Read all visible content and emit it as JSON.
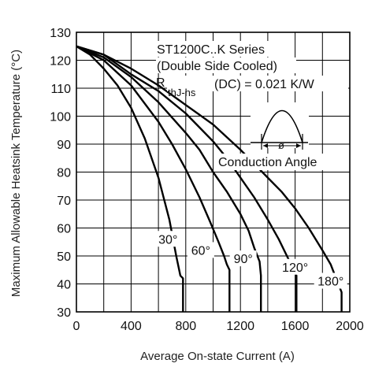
{
  "chart_data": {
    "type": "line",
    "title": "ST1200C..K Series",
    "subtitle": "(Double Side Cooled)",
    "rth_symbol": "R",
    "rth_subscript": "thJ-hs",
    "rth_value": "(DC) = 0.021 K/W",
    "inset_symbol": "ø",
    "inset_label": "Conduction Angle",
    "xlabel": "Average On-state Current (A)",
    "ylabel": "Maximum Allowable Heatsink Temperature (°C)",
    "xlim": [
      0,
      2000
    ],
    "ylim": [
      30,
      130
    ],
    "xticks": [
      "0",
      "400",
      "800",
      "1200",
      "1600",
      "2000"
    ],
    "yticks": [
      "30",
      "40",
      "50",
      "60",
      "70",
      "80",
      "90",
      "100",
      "110",
      "120",
      "130"
    ],
    "x_grid_step": 200,
    "y_grid_step": 10,
    "grid": true,
    "series": [
      {
        "name": "30°",
        "x": [
          0,
          100,
          200,
          300,
          400,
          500,
          600,
          680,
          730,
          760,
          780,
          780
        ],
        "y": [
          125,
          122,
          117,
          111,
          103,
          92,
          78,
          63,
          50,
          43,
          42,
          30
        ]
      },
      {
        "name": "60°",
        "x": [
          0,
          200,
          400,
          600,
          700,
          800,
          900,
          980,
          1040,
          1080,
          1100,
          1120,
          1120
        ],
        "y": [
          125,
          120,
          111,
          98,
          90,
          81,
          71,
          62,
          55,
          50,
          47,
          45,
          30
        ]
      },
      {
        "name": "90°",
        "x": [
          0,
          200,
          400,
          600,
          800,
          900,
          1000,
          1100,
          1200,
          1260,
          1300,
          1340,
          1350,
          1350
        ],
        "y": [
          125,
          121,
          114,
          105,
          94,
          88,
          80,
          73,
          65,
          59,
          53,
          48,
          43,
          30
        ]
      },
      {
        "name": "120°",
        "x": [
          0,
          200,
          400,
          600,
          800,
          1000,
          1100,
          1200,
          1300,
          1400,
          1480,
          1540,
          1580,
          1610,
          1610
        ],
        "y": [
          125,
          122,
          115,
          109,
          101,
          91,
          85,
          78,
          71,
          63,
          56,
          50,
          46,
          43,
          30
        ]
      },
      {
        "name": "180°",
        "x": [
          0,
          200,
          400,
          600,
          800,
          1000,
          1200,
          1400,
          1500,
          1600,
          1700,
          1800,
          1860,
          1900,
          1940,
          1940
        ],
        "y": [
          125,
          122,
          117,
          111,
          104,
          97,
          88,
          78,
          73,
          67,
          60,
          52,
          47,
          42,
          37,
          30
        ]
      }
    ],
    "curve_labels": [
      "30°",
      "60°",
      "90°",
      "120°",
      "180°"
    ]
  }
}
